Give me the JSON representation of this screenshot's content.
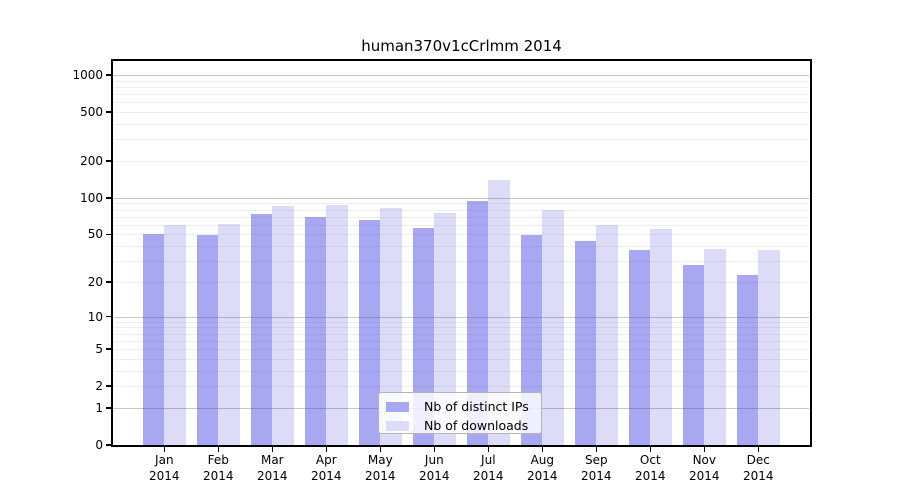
{
  "figure": {
    "title": "human370v1cCrlmm 2014"
  },
  "chart_data": {
    "type": "bar",
    "title": "human370v1cCrlmm 2014",
    "xlabel": "",
    "ylabel": "",
    "y_scale": "log10(value+1)",
    "grid": "on",
    "legend_position": "inside-bottom-center",
    "months": [
      "Jan",
      "Feb",
      "Mar",
      "Apr",
      "May",
      "Jun",
      "Jul",
      "Aug",
      "Sep",
      "Oct",
      "Nov",
      "Dec"
    ],
    "year_label": "2014",
    "categories": [
      "Jan 2014",
      "Feb 2014",
      "Mar 2014",
      "Apr 2014",
      "May 2014",
      "Jun 2014",
      "Jul 2014",
      "Aug 2014",
      "Sep 2014",
      "Oct 2014",
      "Nov 2014",
      "Dec 2014"
    ],
    "series": [
      {
        "name": "Nb of distinct IPs",
        "color": "#a8a8f2",
        "values": [
          50,
          49,
          73,
          70,
          66,
          57,
          95,
          49,
          44,
          37,
          28,
          23
        ]
      },
      {
        "name": "Nb of downloads",
        "color": "#dcdcf9",
        "values": [
          60,
          61,
          86,
          88,
          82,
          75,
          140,
          80,
          60,
          55,
          38,
          37
        ]
      }
    ],
    "y_ticks": [
      1000,
      500,
      200,
      100,
      50,
      20,
      10,
      5,
      2,
      1,
      0
    ],
    "ylim": [
      0,
      1300
    ]
  },
  "legend": {
    "items": [
      {
        "label": "Nb of distinct IPs",
        "color": "#a8a8f2"
      },
      {
        "label": "Nb of downloads",
        "color": "#dcdcf9"
      }
    ]
  }
}
